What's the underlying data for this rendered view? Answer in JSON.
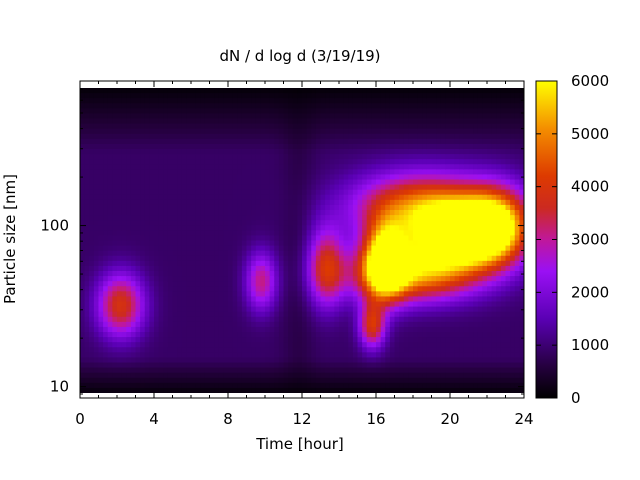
{
  "chart_data": {
    "type": "heatmap",
    "title": "dN / d log d (3/19/19)",
    "xlabel": "Time [hour]",
    "ylabel": "Particle size [nm]",
    "xlim": [
      0,
      24
    ],
    "ylim": [
      8.5,
      790
    ],
    "y_scale": "log",
    "x_ticks": [
      0,
      4,
      8,
      12,
      16,
      20,
      24
    ],
    "x_tick_labels": [
      "0",
      "4",
      "8",
      "12",
      "16",
      "20",
      "24"
    ],
    "y_ticks": [
      10,
      100
    ],
    "y_tick_labels": [
      "10",
      "100"
    ],
    "colorbar": {
      "range": [
        0,
        6000
      ],
      "ticks": [
        0,
        1000,
        2000,
        3000,
        4000,
        5000,
        6000
      ],
      "tick_labels": [
        "0",
        "1000",
        "2000",
        "3000",
        "4000",
        "5000",
        "6000"
      ],
      "colormap": "gnuplot (black-purple-red-orange-yellow)"
    },
    "background_level": 900,
    "features": [
      {
        "t": 2.2,
        "d": 32,
        "peak": 3000,
        "t_width": 0.9,
        "d_width_log10": 0.14
      },
      {
        "t": 9.8,
        "d": 45,
        "peak": 2200,
        "t_width": 0.6,
        "d_width_log10": 0.13
      },
      {
        "t": 13.3,
        "d": 55,
        "peak": 2700,
        "t_width": 0.7,
        "d_width_log10": 0.17
      },
      {
        "t": 16.5,
        "d": 60,
        "peak": 5400,
        "t_width": 0.8,
        "d_width_log10": 0.16
      },
      {
        "t": 15.8,
        "d": 24,
        "peak": 3000,
        "t_width": 0.5,
        "d_width_log10": 0.1
      },
      {
        "t": 20.5,
        "d": 85,
        "peak": 5400,
        "t_width": 1.8,
        "d_width_log10": 0.14
      },
      {
        "t": 18.5,
        "d": 130,
        "peak": 3800,
        "t_width": 2.6,
        "d_width_log10": 0.15
      },
      {
        "t": 22.5,
        "d": 100,
        "peak": 4200,
        "t_width": 1.3,
        "d_width_log10": 0.16
      },
      {
        "t": 18.0,
        "d": 50,
        "peak": 4000,
        "t_width": 2.4,
        "d_width_log10": 0.12
      }
    ]
  }
}
